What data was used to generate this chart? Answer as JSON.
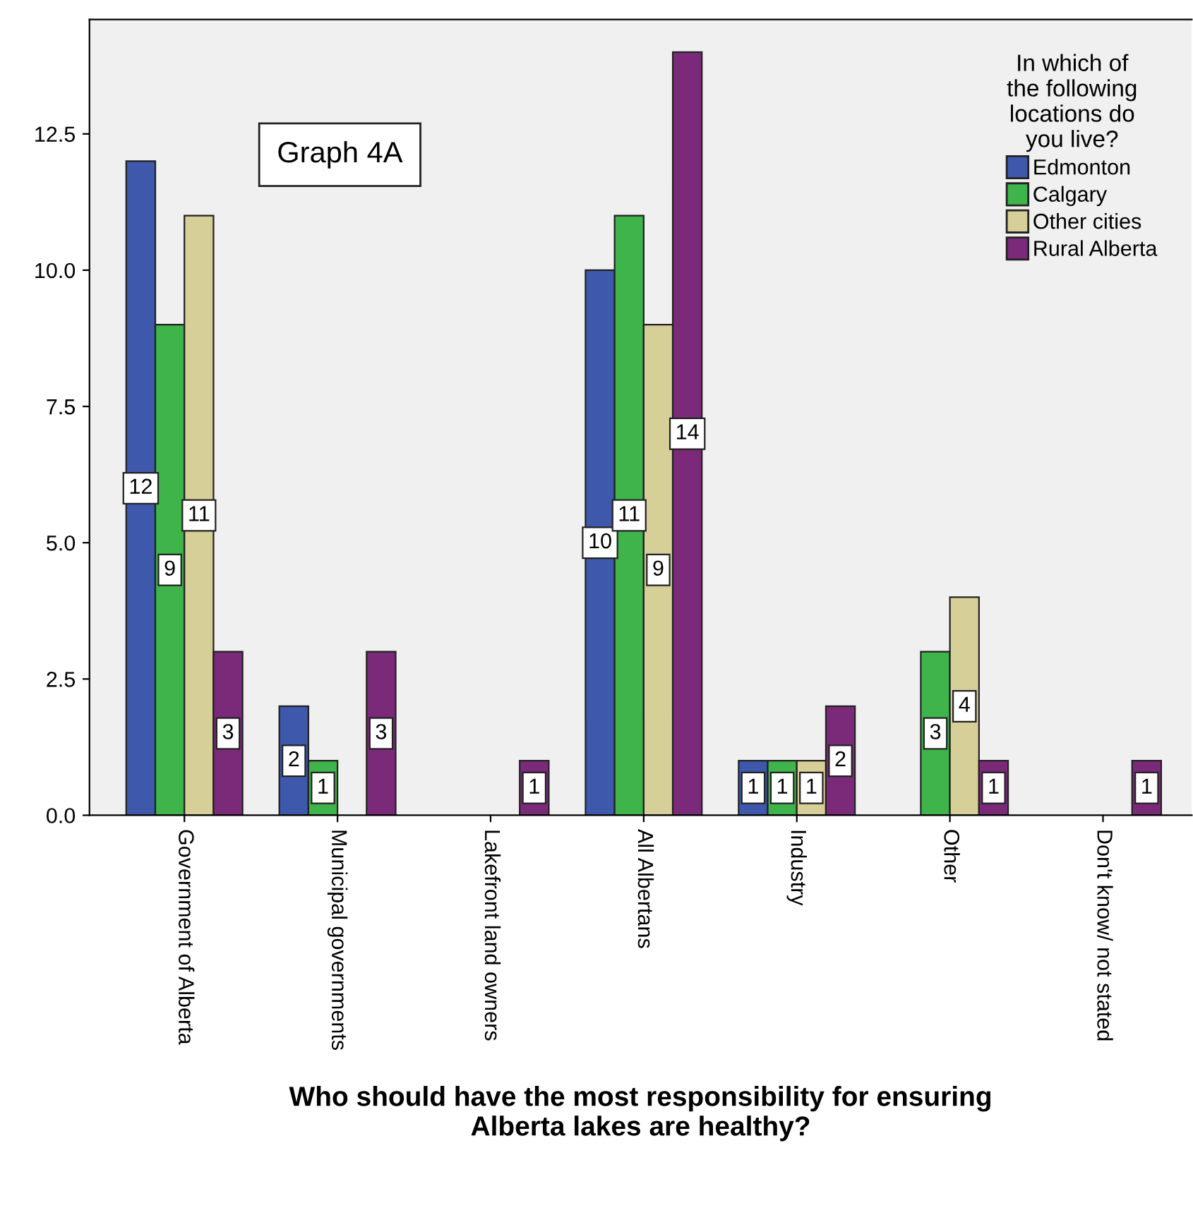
{
  "chart_data": {
    "type": "bar",
    "xlabel": "Who should have the most responsibility for ensuring\nAlberta lakes are healthy?",
    "legend_title": "In which of\nthe following\nlocations do\nyou live?",
    "annotations": [
      "Graph 4A"
    ],
    "categories": [
      "Government of Alberta",
      "Municipal governments",
      "Lakefront land owners",
      "All Albertans",
      "Industry",
      "Other",
      "Don't know/ not stated"
    ],
    "series": [
      {
        "name": "Edmonton",
        "color": "#3e58ac",
        "values": [
          12,
          2,
          null,
          10,
          1,
          null,
          null
        ]
      },
      {
        "name": "Calgary",
        "color": "#3eb44a",
        "values": [
          9,
          1,
          null,
          11,
          1,
          3,
          null
        ]
      },
      {
        "name": "Other cities",
        "color": "#d6cf98",
        "values": [
          11,
          null,
          null,
          9,
          1,
          4,
          null
        ]
      },
      {
        "name": "Rural Alberta",
        "color": "#7b2a7a",
        "values": [
          3,
          3,
          1,
          14,
          2,
          1,
          1
        ]
      }
    ],
    "ylim": [
      0,
      14.6
    ],
    "yticks": [
      {
        "value": 0,
        "label": "0.0"
      },
      {
        "value": 2.5,
        "label": "2.5"
      },
      {
        "value": 5,
        "label": "5.0"
      },
      {
        "value": 7.5,
        "label": "7.5"
      },
      {
        "value": 10,
        "label": "10.0"
      },
      {
        "value": 12.5,
        "label": "12.5"
      }
    ],
    "data_labels": true,
    "legend": "top right",
    "grid": false
  }
}
